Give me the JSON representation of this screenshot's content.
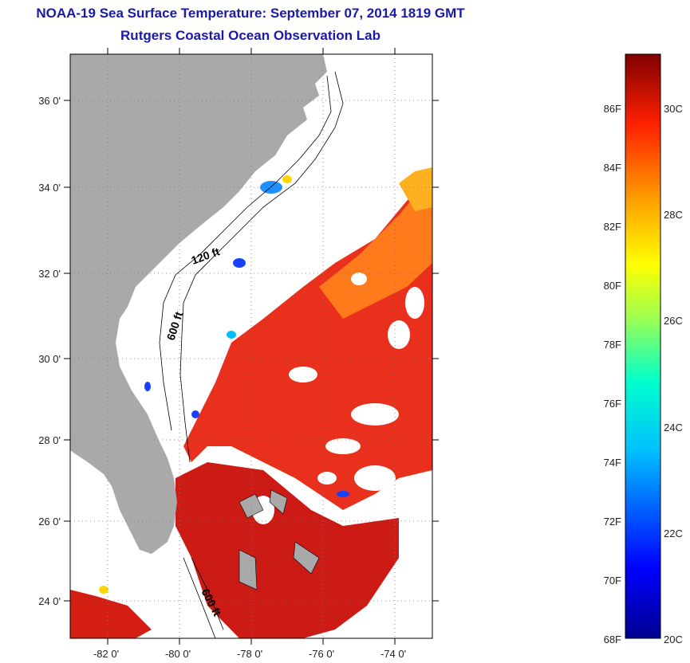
{
  "header": {
    "title": "NOAA-19 Sea Surface Temperature:  September 07, 2014 1819 GMT",
    "subtitle": "Rutgers Coastal Ocean Observation Lab"
  },
  "map": {
    "lat_labels": [
      "36 0'",
      "34 0'",
      "32 0'",
      "30 0'",
      "28 0'",
      "26 0'",
      "24 0'"
    ],
    "lon_labels": [
      "-82 0'",
      "-80 0'",
      "-78 0'",
      "-76 0'",
      "-74 0'"
    ],
    "lat_range": [
      23,
      37.1
    ],
    "lon_range": [
      -83,
      -73.2
    ],
    "contour_labels": [
      "120 ft",
      "600 ft",
      "600 ft"
    ],
    "colors": {
      "land": "#a9a9a9",
      "cloud": "#ffffff",
      "warm": "#e8241a",
      "hot": "#c01010"
    }
  },
  "colorbar": {
    "f_labels": [
      "86F",
      "84F",
      "82F",
      "80F",
      "78F",
      "76F",
      "74F",
      "72F",
      "70F",
      "68F"
    ],
    "c_labels": [
      "30C",
      "28C",
      "26C",
      "24C",
      "22C",
      "20C"
    ],
    "range_f": [
      68,
      88
    ]
  }
}
